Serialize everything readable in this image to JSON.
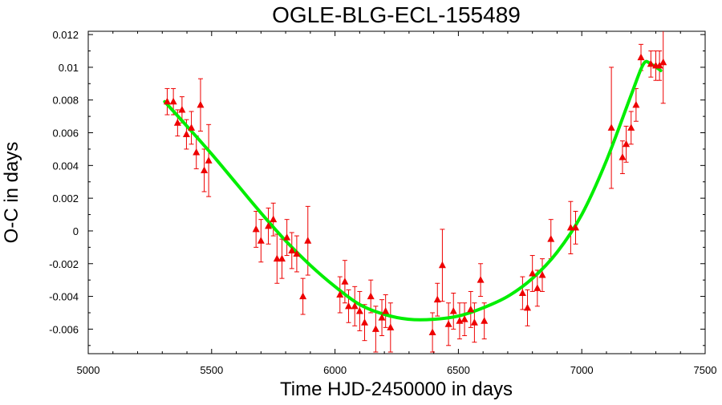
{
  "chart_data": {
    "type": "scatter",
    "title": "OGLE-BLG-ECL-155489",
    "xlabel": "Time HJD-2450000 in days",
    "ylabel": "O-C in days",
    "xlim": [
      5000,
      7500
    ],
    "ylim": [
      -0.0075,
      0.0122
    ],
    "x_ticks": [
      5000,
      5500,
      6000,
      6500,
      7000,
      7500
    ],
    "x_tick_labels": [
      "5000",
      "5500",
      "6000",
      "6500",
      "7000",
      "7500"
    ],
    "y_ticks": [
      0.012,
      0.01,
      0.008,
      0.006,
      0.004,
      0.002,
      0,
      -0.002,
      -0.004,
      -0.006
    ],
    "y_tick_labels": [
      "0.012",
      "0.01",
      "0.008",
      "0.006",
      "0.004",
      "0.002",
      "0",
      "-0.002",
      "-0.004",
      "-0.006"
    ],
    "grid": false,
    "colors": {
      "points": "#ee0000",
      "fit": "#00ee00"
    },
    "series": [
      {
        "kind": "points-with-errorbars",
        "marker": "triangle",
        "points": [
          {
            "x": 5320,
            "y": 0.0079,
            "err": 0.0008
          },
          {
            "x": 5345,
            "y": 0.0079,
            "err": 0.0008
          },
          {
            "x": 5362,
            "y": 0.0066,
            "err": 0.0008
          },
          {
            "x": 5380,
            "y": 0.0074,
            "err": 0.0008
          },
          {
            "x": 5398,
            "y": 0.0059,
            "err": 0.0009
          },
          {
            "x": 5418,
            "y": 0.0063,
            "err": 0.001
          },
          {
            "x": 5438,
            "y": 0.0048,
            "err": 0.001
          },
          {
            "x": 5455,
            "y": 0.0077,
            "err": 0.0016
          },
          {
            "x": 5470,
            "y": 0.0037,
            "err": 0.0013
          },
          {
            "x": 5488,
            "y": 0.0043,
            "err": 0.0022
          },
          {
            "x": 5680,
            "y": 0.0001,
            "err": 0.0011
          },
          {
            "x": 5700,
            "y": -0.0006,
            "err": 0.0013
          },
          {
            "x": 5730,
            "y": 0.0003,
            "err": 0.0011
          },
          {
            "x": 5750,
            "y": 0.0007,
            "err": 0.001
          },
          {
            "x": 5765,
            "y": -0.0017,
            "err": 0.0015
          },
          {
            "x": 5785,
            "y": -0.0017,
            "err": 0.0012
          },
          {
            "x": 5805,
            "y": -0.0004,
            "err": 0.0011
          },
          {
            "x": 5825,
            "y": -0.0012,
            "err": 0.0011
          },
          {
            "x": 5845,
            "y": -0.0014,
            "err": 0.0011
          },
          {
            "x": 5870,
            "y": -0.004,
            "err": 0.0011
          },
          {
            "x": 5890,
            "y": -0.0006,
            "err": 0.0021
          },
          {
            "x": 6020,
            "y": -0.0039,
            "err": 0.0011
          },
          {
            "x": 6040,
            "y": -0.0031,
            "err": 0.0013
          },
          {
            "x": 6055,
            "y": -0.0046,
            "err": 0.001
          },
          {
            "x": 6080,
            "y": -0.0046,
            "err": 0.0012
          },
          {
            "x": 6100,
            "y": -0.0049,
            "err": 0.0012
          },
          {
            "x": 6120,
            "y": -0.0056,
            "err": 0.0011
          },
          {
            "x": 6145,
            "y": -0.004,
            "err": 0.001
          },
          {
            "x": 6165,
            "y": -0.006,
            "err": 0.0014
          },
          {
            "x": 6190,
            "y": -0.0053,
            "err": 0.0011
          },
          {
            "x": 6205,
            "y": -0.0049,
            "err": 0.001
          },
          {
            "x": 6225,
            "y": -0.0059,
            "err": 0.0015
          },
          {
            "x": 6395,
            "y": -0.0062,
            "err": 0.0012
          },
          {
            "x": 6415,
            "y": -0.0042,
            "err": 0.001
          },
          {
            "x": 6435,
            "y": -0.0021,
            "err": 0.0022
          },
          {
            "x": 6460,
            "y": -0.0057,
            "err": 0.0013
          },
          {
            "x": 6480,
            "y": -0.0049,
            "err": 0.0011
          },
          {
            "x": 6505,
            "y": -0.0055,
            "err": 0.0011
          },
          {
            "x": 6525,
            "y": -0.0054,
            "err": 0.001
          },
          {
            "x": 6550,
            "y": -0.0048,
            "err": 0.0011
          },
          {
            "x": 6565,
            "y": -0.0056,
            "err": 0.0012
          },
          {
            "x": 6590,
            "y": -0.003,
            "err": 0.001
          },
          {
            "x": 6605,
            "y": -0.0055,
            "err": 0.0011
          },
          {
            "x": 6760,
            "y": -0.0038,
            "err": 0.001
          },
          {
            "x": 6780,
            "y": -0.0047,
            "err": 0.0011
          },
          {
            "x": 6800,
            "y": -0.0026,
            "err": 0.0011
          },
          {
            "x": 6820,
            "y": -0.0035,
            "err": 0.0011
          },
          {
            "x": 6840,
            "y": -0.0027,
            "err": 0.001
          },
          {
            "x": 6875,
            "y": -0.0005,
            "err": 0.0012
          },
          {
            "x": 6955,
            "y": 0.0002,
            "err": 0.0016
          },
          {
            "x": 6975,
            "y": 0.0002,
            "err": 0.001
          },
          {
            "x": 7120,
            "y": 0.0063,
            "err": 0.0037
          },
          {
            "x": 7165,
            "y": 0.0045,
            "err": 0.001
          },
          {
            "x": 7180,
            "y": 0.0053,
            "err": 0.0011
          },
          {
            "x": 7200,
            "y": 0.0063,
            "err": 0.001
          },
          {
            "x": 7220,
            "y": 0.0077,
            "err": 0.001
          },
          {
            "x": 7240,
            "y": 0.0106,
            "err": 0.0008
          },
          {
            "x": 7280,
            "y": 0.0102,
            "err": 0.0008
          },
          {
            "x": 7300,
            "y": 0.0101,
            "err": 0.0009
          },
          {
            "x": 7315,
            "y": 0.0101,
            "err": 0.0009
          },
          {
            "x": 7330,
            "y": 0.0103,
            "err": 0.0025
          }
        ]
      },
      {
        "kind": "fit-curve",
        "x": [
          5310,
          5400,
          5500,
          5600,
          5700,
          5800,
          5900,
          6000,
          6100,
          6200,
          6300,
          6400,
          6500,
          6600,
          6700,
          6800,
          6900,
          7000,
          7100,
          7200,
          7250,
          7280,
          7320
        ],
        "y": [
          0.0079,
          0.0064,
          0.0047,
          0.0029,
          0.0011,
          -0.0006,
          -0.0021,
          -0.0034,
          -0.0045,
          -0.0051,
          -0.0054,
          -0.0054,
          -0.0052,
          -0.0047,
          -0.004,
          -0.0029,
          -0.0013,
          0.001,
          0.0043,
          0.0083,
          0.0102,
          0.0102,
          0.0098
        ]
      }
    ]
  }
}
